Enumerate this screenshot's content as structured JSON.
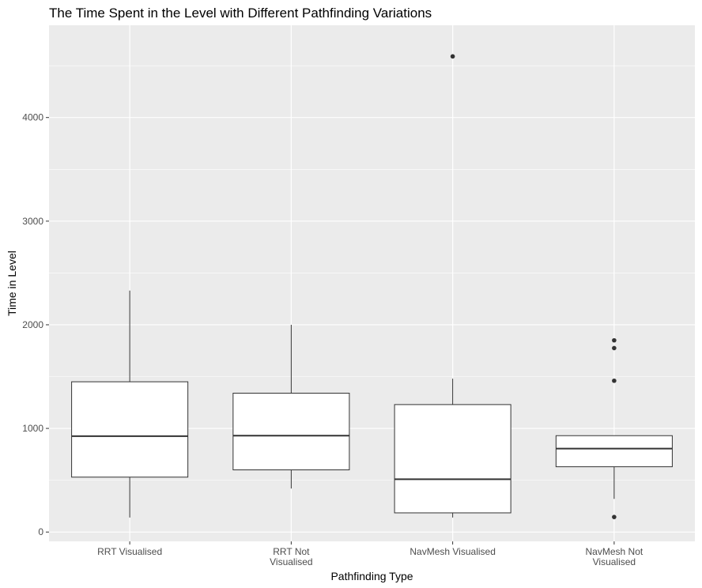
{
  "chart_data": {
    "type": "boxplot",
    "title": "The Time Spent in the Level with Different  Pathfinding Variations",
    "xlabel": "Pathfinding Type",
    "ylabel": "Time in Level",
    "ylim": [
      -90,
      4890
    ],
    "yticks": [
      0,
      1000,
      2000,
      3000,
      4000
    ],
    "grid": true,
    "background": "#ebebeb",
    "gridline_color": "#ffffff",
    "box_fill": "#ffffff",
    "box_stroke": "#333333",
    "categories": [
      {
        "label_lines": [
          "RRT Visualised"
        ],
        "whisker_low": 140,
        "q1": 530,
        "median": 925,
        "q3": 1450,
        "whisker_high": 2330,
        "outliers": []
      },
      {
        "label_lines": [
          "RRT Not",
          "Visualised"
        ],
        "whisker_low": 420,
        "q1": 600,
        "median": 930,
        "q3": 1340,
        "whisker_high": 2000,
        "outliers": []
      },
      {
        "label_lines": [
          "NavMesh Visualised"
        ],
        "whisker_low": 140,
        "q1": 185,
        "median": 510,
        "q3": 1230,
        "whisker_high": 1480,
        "outliers": [
          4590
        ]
      },
      {
        "label_lines": [
          "NavMesh Not",
          "Visualised"
        ],
        "whisker_low": 320,
        "q1": 630,
        "median": 805,
        "q3": 930,
        "whisker_high": 930,
        "outliers": [
          1850,
          1775,
          1460,
          145
        ]
      }
    ]
  }
}
